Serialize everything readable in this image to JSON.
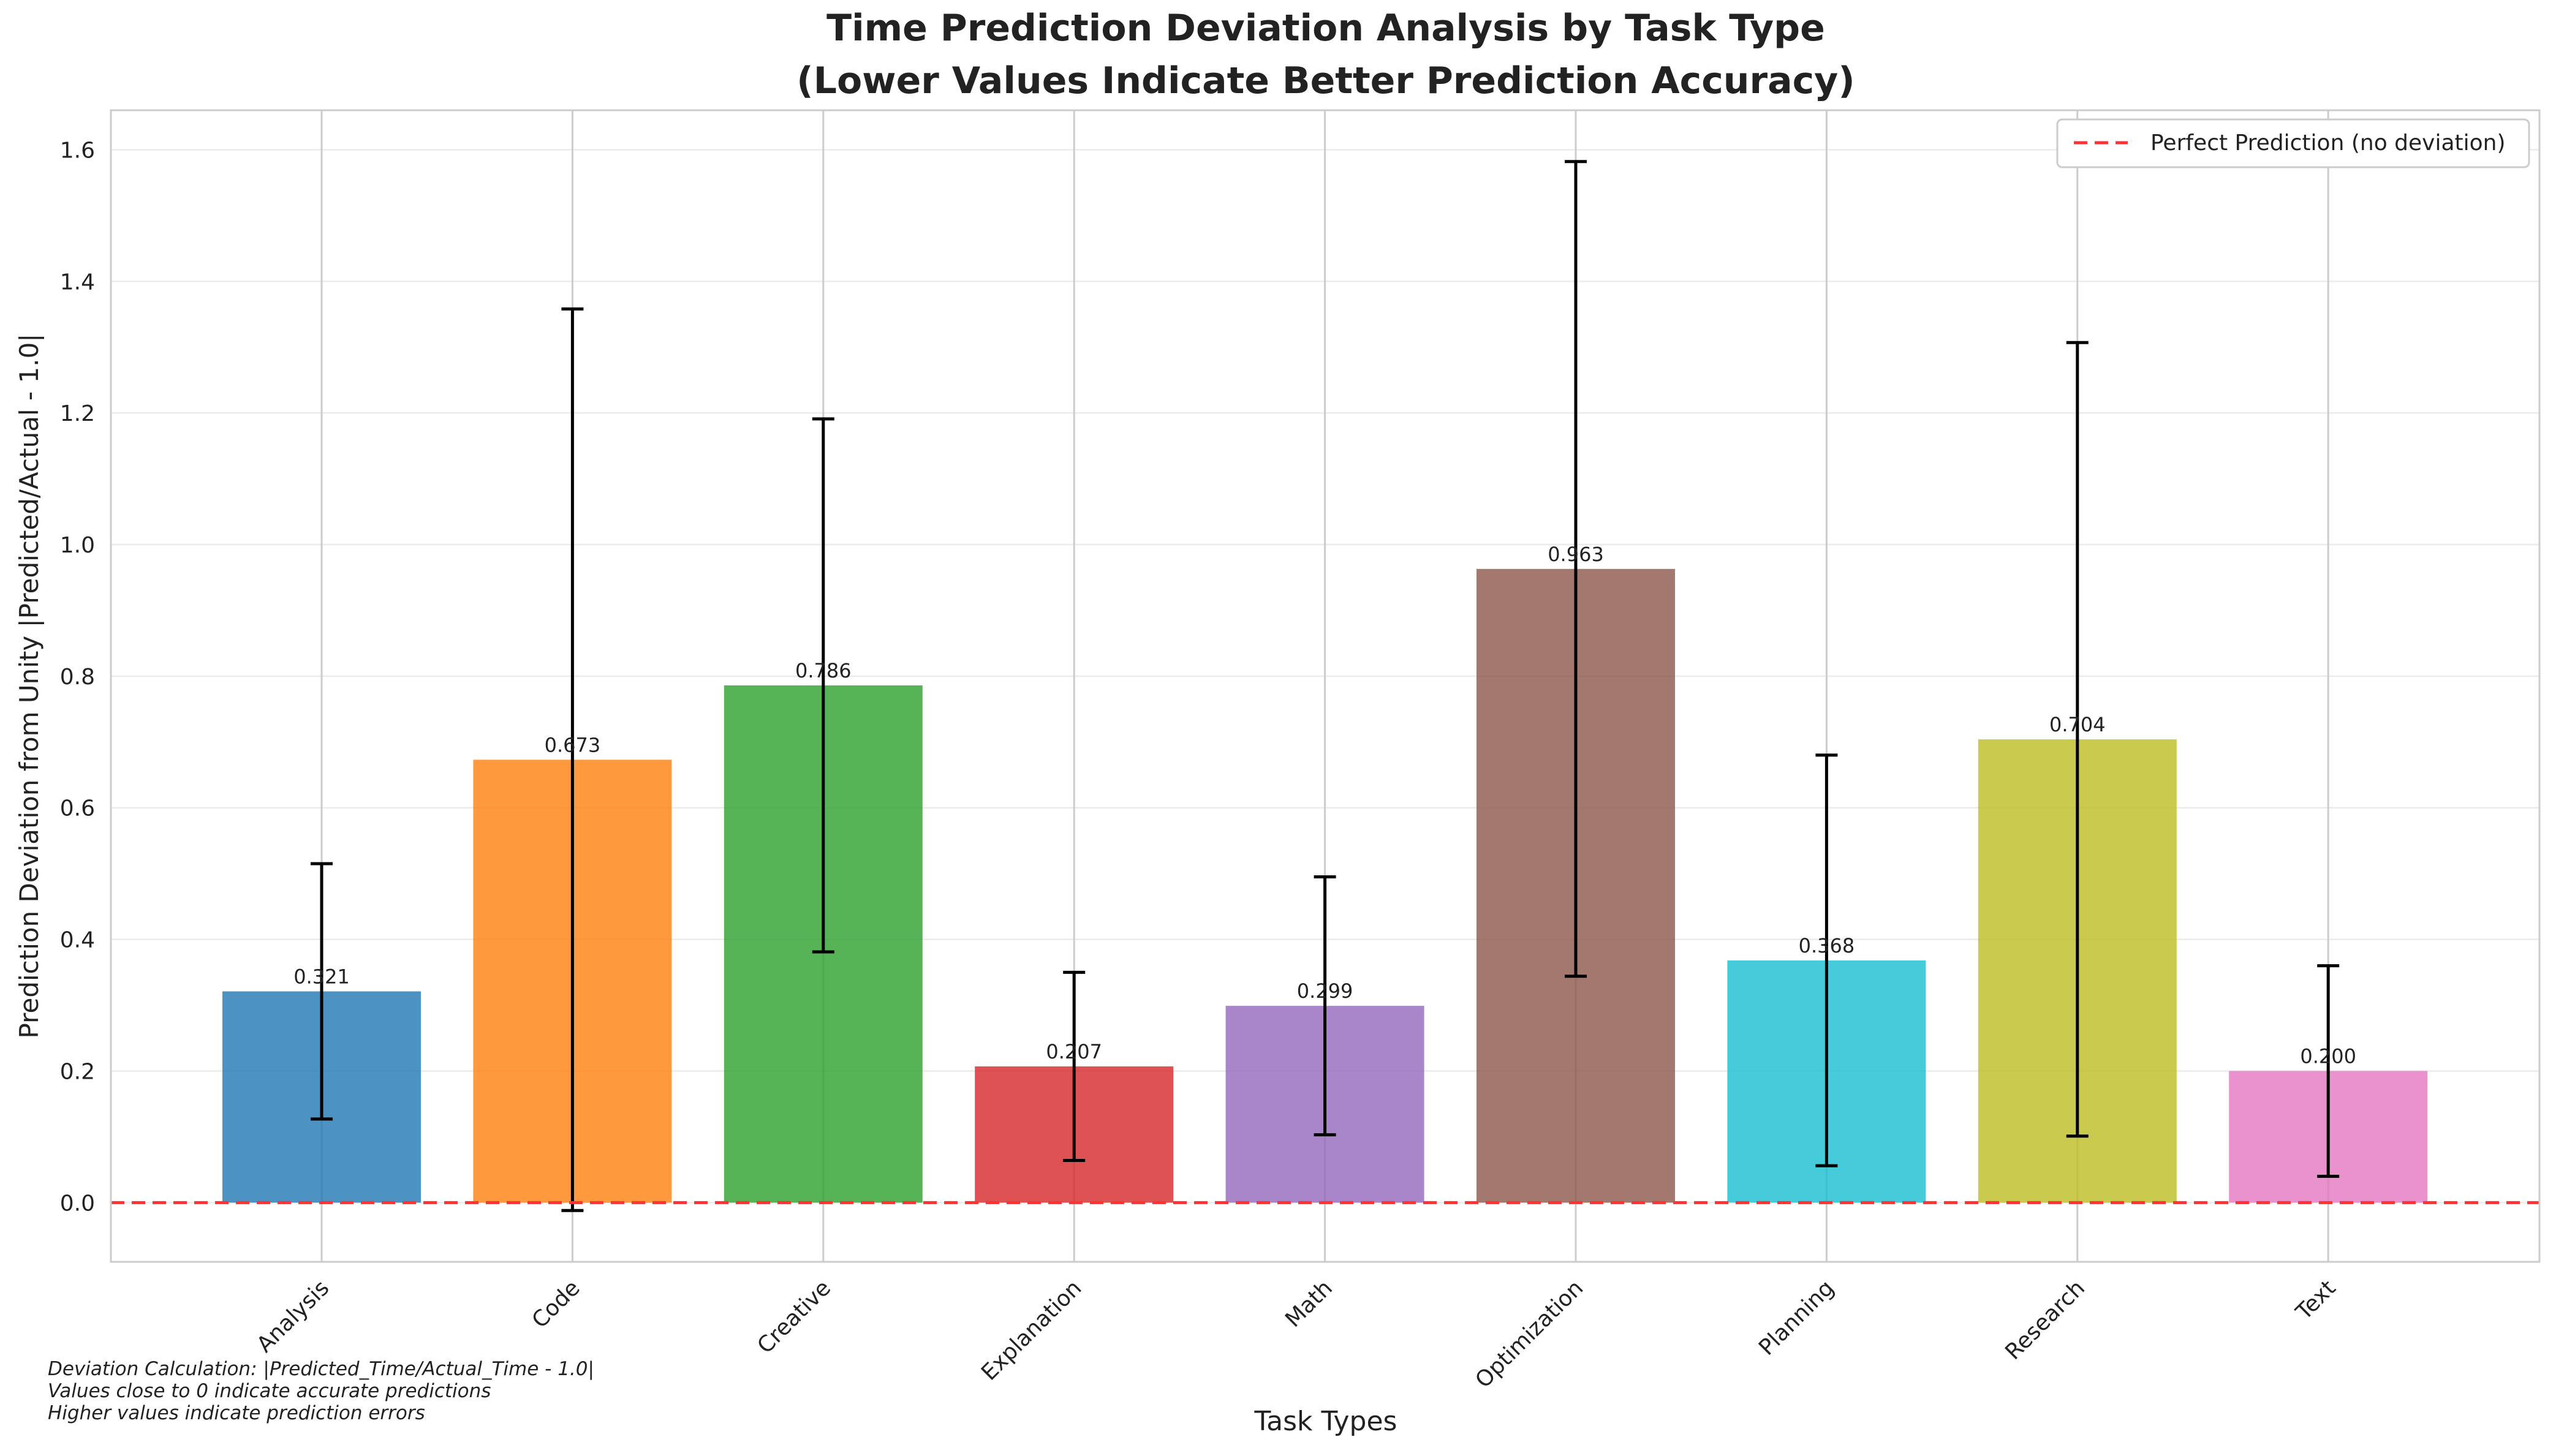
{
  "chart_data": {
    "type": "bar",
    "title": "Time Prediction Deviation Analysis by Task Type",
    "subtitle": "(Lower Values Indicate Better Prediction Accuracy)",
    "xlabel": "Task Types",
    "ylabel": "Prediction Deviation from Unity |Predicted/Actual - 1.0|",
    "ylim": [
      -0.09,
      1.66
    ],
    "yticks": [
      "0.0",
      "0.2",
      "0.4",
      "0.6",
      "0.8",
      "1.0",
      "1.2",
      "1.4",
      "1.6"
    ],
    "categories": [
      "Analysis",
      "Code",
      "Creative",
      "Explanation",
      "Math",
      "Optimization",
      "Planning",
      "Research",
      "Text"
    ],
    "values": [
      0.321,
      0.673,
      0.786,
      0.207,
      0.299,
      0.963,
      0.368,
      0.704,
      0.2
    ],
    "value_labels": [
      "0.321",
      "0.673",
      "0.786",
      "0.207",
      "0.299",
      "0.963",
      "0.368",
      "0.704",
      "0.200"
    ],
    "errors": [
      0.194,
      0.685,
      0.405,
      0.143,
      0.196,
      0.619,
      0.312,
      0.603,
      0.16
    ],
    "colors": [
      "#1f77b4",
      "#ff7f0e",
      "#2ca02c",
      "#d62728",
      "#9467bd",
      "#8c564b",
      "#17becf",
      "#bcbd22",
      "#e377c2"
    ],
    "reference_line": {
      "y": 0.0,
      "label": "Perfect Prediction (no deviation)",
      "color": "#ff3333",
      "style": "dashed"
    },
    "grid": true,
    "legend_position": "top-right"
  },
  "footnote": {
    "line1": "Deviation Calculation: |Predicted_Time/Actual_Time - 1.0|",
    "line2": "Values close to 0 indicate accurate predictions",
    "line3": "Higher values indicate prediction errors"
  }
}
